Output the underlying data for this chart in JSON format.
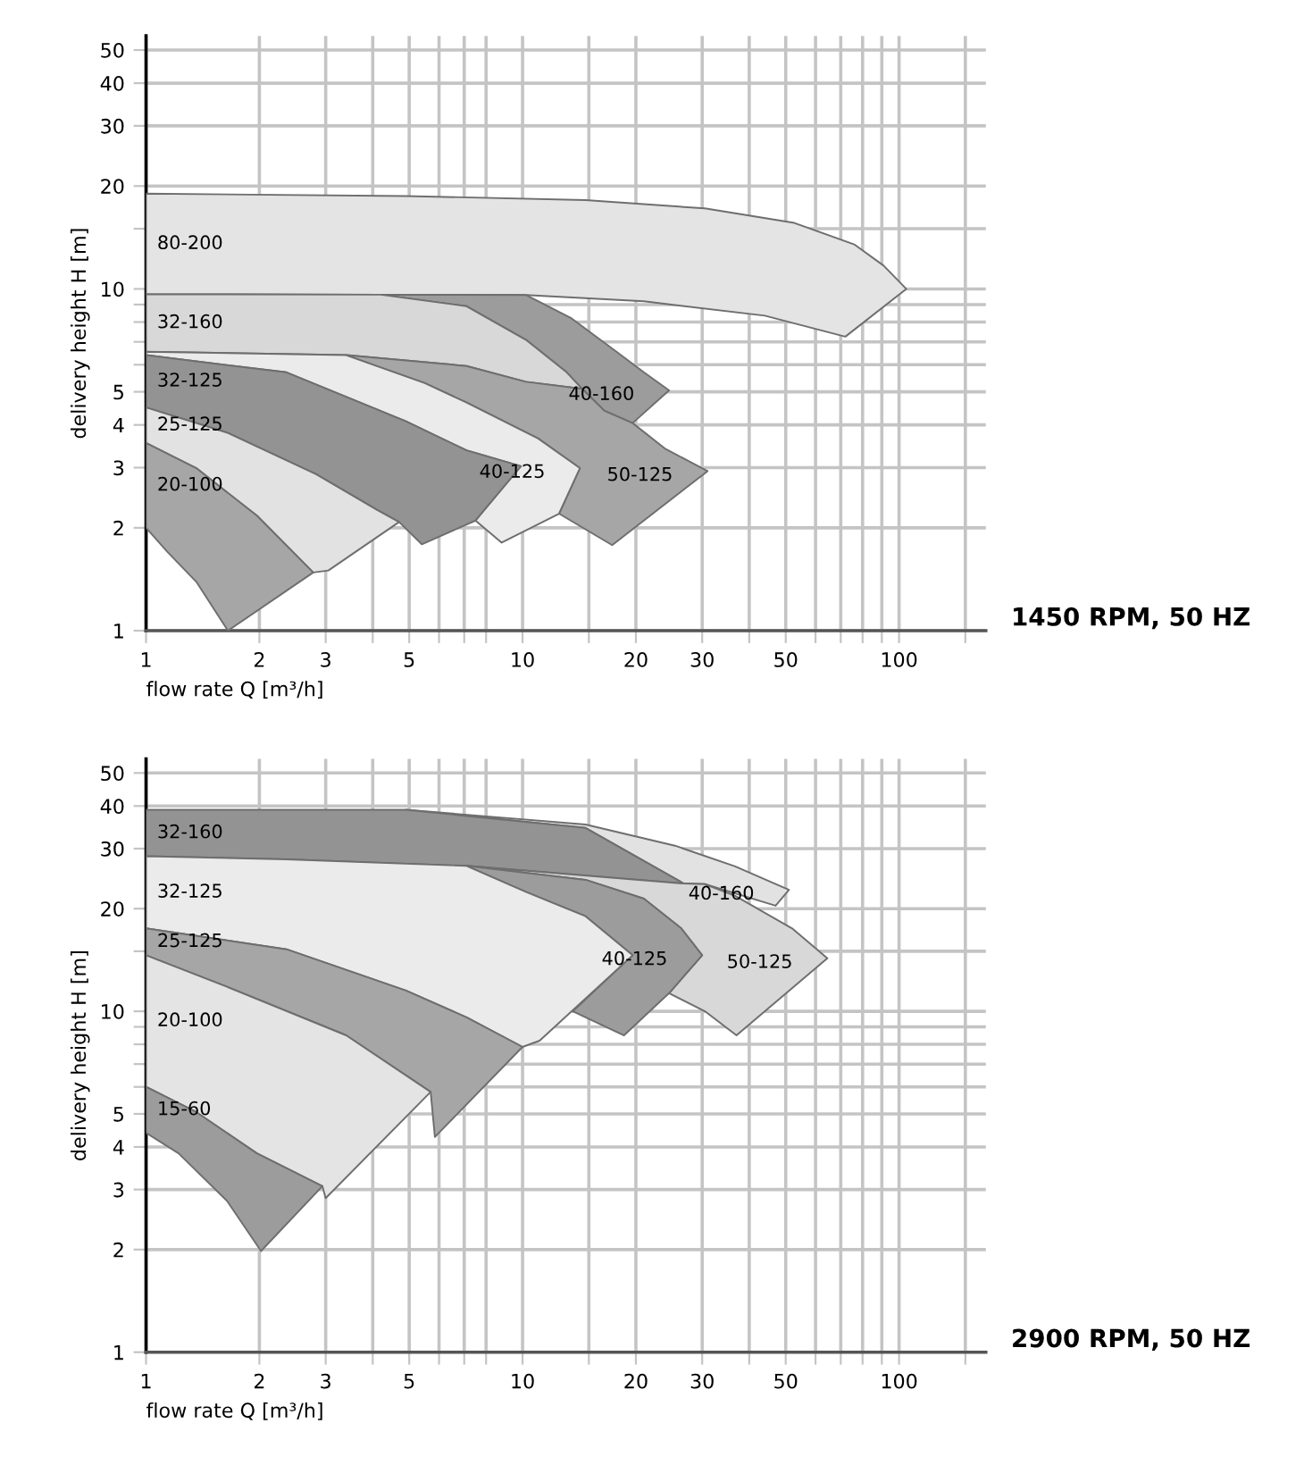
{
  "chart_data": [
    {
      "type": "area",
      "xlabel": "flow rate Q [m³/h]",
      "ylabel": "delivery height H [m]",
      "log": "xy",
      "grid": true,
      "xlim": [
        1,
        170
      ],
      "ylim": [
        1,
        55
      ],
      "xticks": [
        1,
        2,
        3,
        {
          "value": 4,
          "label": null
        },
        5,
        {
          "value": 6,
          "label": null
        },
        {
          "value": 7,
          "label": null
        },
        {
          "value": 8,
          "label": null
        },
        10,
        {
          "value": 15,
          "label": null
        },
        20,
        30,
        {
          "value": 40,
          "label": null
        },
        50,
        {
          "value": 60,
          "label": null
        },
        {
          "value": 70,
          "label": null
        },
        {
          "value": 80,
          "label": null
        },
        {
          "value": 90,
          "label": null
        },
        100,
        {
          "value": 150,
          "label": null
        }
      ],
      "yticks": [
        1,
        2,
        3,
        4,
        5,
        {
          "value": 6,
          "label": null
        },
        {
          "value": 7,
          "label": null
        },
        {
          "value": 8,
          "label": null
        },
        {
          "value": 9,
          "label": null
        },
        10,
        {
          "value": 15,
          "label": null
        },
        20,
        30,
        40,
        50
      ],
      "series": [
        {
          "name": "80-200",
          "color": "#e4e4e4",
          "x": [
            1,
            4.9,
            14.7,
            30.5,
            52.7,
            76,
            91,
            104.5,
            72,
            44,
            21,
            10.2,
            4.2,
            1
          ],
          "values": [
            19,
            18.7,
            18.2,
            17.2,
            15.6,
            13.5,
            11.7,
            10,
            7.25,
            8.35,
            9.2,
            9.6,
            9.62,
            9.65
          ]
        },
        {
          "name": "40-160",
          "color": "#9c9c9c",
          "x": [
            4.2,
            10.2,
            13.5,
            17.6,
            21,
            24.5,
            19.6,
            16.5,
            14.4,
            13.1,
            10.2,
            7.1
          ],
          "values": [
            9.62,
            9.6,
            8.2,
            6.6,
            5.7,
            5.05,
            4.05,
            4.4,
            5.1,
            5.7,
            7.1,
            8.9
          ]
        },
        {
          "name": "32-160",
          "color": "#d8d8d8",
          "x": [
            1,
            4.2,
            7.1,
            10.2,
            13.1,
            14.4,
            10.2,
            7.1,
            3.4,
            1
          ],
          "values": [
            9.65,
            9.62,
            8.9,
            7.1,
            5.7,
            5.1,
            5.35,
            5.95,
            6.4,
            6.55
          ]
        },
        {
          "name": "50-125",
          "color": "#a6a6a6",
          "x": [
            3.4,
            7.1,
            10.2,
            14.4,
            16.5,
            19.6,
            24,
            31,
            17.3,
            12.5,
            14.2,
            11,
            7.1,
            5.5
          ],
          "values": [
            6.4,
            5.95,
            5.35,
            5.1,
            4.4,
            4.05,
            3.4,
            2.93,
            1.78,
            2.2,
            2.99,
            3.65,
            4.65,
            5.3
          ]
        },
        {
          "name": "40-125",
          "color": "#ebebeb",
          "x": [
            1,
            3.4,
            5.5,
            7.1,
            11,
            14.2,
            12.5,
            8.8,
            7.5,
            9.9,
            7.1,
            4.9,
            2.36,
            1
          ],
          "values": [
            6.55,
            6.4,
            5.3,
            4.65,
            3.65,
            2.99,
            2.2,
            1.81,
            2.1,
            3.03,
            3.37,
            4.1,
            5.7,
            6.4
          ]
        },
        {
          "name": "32-125",
          "color": "#939393",
          "x": [
            1,
            2.36,
            4.9,
            7.1,
            9.9,
            7.5,
            5.4,
            4.7,
            4.1,
            2.83,
            1.64,
            1
          ],
          "values": [
            6.4,
            5.7,
            4.1,
            3.37,
            3.03,
            2.1,
            1.79,
            2.08,
            2.26,
            2.87,
            3.8,
            4.5
          ]
        },
        {
          "name": "25-125",
          "color": "#e2e2e2",
          "x": [
            1,
            1.64,
            2.83,
            4.1,
            4.7,
            3.05,
            2.78,
            1.97,
            1.36,
            1
          ],
          "values": [
            4.5,
            3.8,
            2.87,
            2.26,
            2.08,
            1.5,
            1.48,
            2.17,
            2.99,
            3.54
          ]
        },
        {
          "name": "20-100",
          "color": "#a6a6a6",
          "x": [
            1,
            1.36,
            1.97,
            2.78,
            1.65,
            1.36,
            1.14,
            1
          ],
          "values": [
            3.54,
            2.99,
            2.17,
            1.48,
            1.0,
            1.39,
            1.7,
            2.0
          ]
        }
      ],
      "annotations": [
        "1450 RPM, 50 HZ"
      ]
    },
    {
      "type": "area",
      "xlabel": "flow rate Q [m³/h]",
      "ylabel": "delivery height H [m]",
      "log": "xy",
      "grid": true,
      "xlim": [
        1,
        170
      ],
      "ylim": [
        1,
        55
      ],
      "xticks": [
        1,
        2,
        3,
        {
          "value": 4,
          "label": null
        },
        5,
        {
          "value": 6,
          "label": null
        },
        {
          "value": 7,
          "label": null
        },
        {
          "value": 8,
          "label": null
        },
        10,
        {
          "value": 15,
          "label": null
        },
        20,
        30,
        {
          "value": 40,
          "label": null
        },
        50,
        {
          "value": 60,
          "label": null
        },
        {
          "value": 70,
          "label": null
        },
        {
          "value": 80,
          "label": null
        },
        {
          "value": 90,
          "label": null
        },
        100,
        {
          "value": 150,
          "label": null
        }
      ],
      "yticks": [
        1,
        2,
        3,
        4,
        5,
        {
          "value": 6,
          "label": null
        },
        {
          "value": 7,
          "label": null
        },
        {
          "value": 8,
          "label": null
        },
        {
          "value": 9,
          "label": null
        },
        10,
        {
          "value": 15,
          "label": null
        },
        20,
        30,
        40,
        50
      ],
      "series": [
        {
          "name": "40-160",
          "color": "#e2e2e2",
          "x": [
            4.9,
            14.7,
            25.4,
            36.7,
            51,
            47,
            30.5,
            26.8,
            14.7
          ],
          "values": [
            39,
            35.3,
            30.6,
            26.6,
            22.7,
            20.4,
            23.6,
            23.7,
            34.5
          ]
        },
        {
          "name": "32-160",
          "color": "#939393",
          "x": [
            1,
            4.9,
            14.7,
            26.8,
            7.1,
            2.36,
            1
          ],
          "values": [
            39,
            39,
            34.5,
            23.7,
            26.7,
            27.9,
            28.5
          ]
        },
        {
          "name": "50-125",
          "color": "#d8d8d8",
          "x": [
            26.8,
            30.5,
            36.7,
            52,
            64.5,
            37,
            30.5,
            24.5,
            30,
            26.4,
            21,
            14.7,
            7.1
          ],
          "values": [
            23.7,
            23.6,
            21.8,
            17.5,
            14.3,
            8.5,
            10,
            11.3,
            14.6,
            17.5,
            21.4,
            24.3,
            26.7
          ]
        },
        {
          "name": "40-125",
          "color": "#9c9c9c",
          "x": [
            7.1,
            14.7,
            21,
            26.4,
            30,
            24.5,
            18.6,
            13.6,
            19.6,
            14.7,
            10.2
          ],
          "values": [
            26.7,
            24.3,
            21.4,
            17.5,
            14.6,
            11.3,
            8.5,
            10,
            14.6,
            19,
            22.4
          ]
        },
        {
          "name": "32-125",
          "color": "#ebebeb",
          "x": [
            1,
            2.36,
            7.1,
            10.2,
            14.7,
            19.6,
            11.1,
            10,
            7.1,
            4.9,
            2.36,
            1
          ],
          "values": [
            28.5,
            27.9,
            26.7,
            22.4,
            19,
            14.6,
            8.2,
            7.86,
            9.6,
            11.5,
            15.2,
            17.5
          ]
        },
        {
          "name": "25-125",
          "color": "#a6a6a6",
          "x": [
            1,
            2.36,
            4.9,
            7.1,
            10,
            5.85,
            5.7,
            3.4,
            1.64,
            1
          ],
          "values": [
            17.5,
            15.2,
            11.5,
            9.6,
            7.86,
            4.28,
            5.8,
            8.5,
            11.8,
            14.6
          ]
        },
        {
          "name": "20-100",
          "color": "#e4e4e4",
          "x": [
            1,
            1.64,
            3.4,
            5.7,
            3.0,
            2.94,
            1.97,
            1.36,
            1
          ],
          "values": [
            14.6,
            11.8,
            8.5,
            5.8,
            2.83,
            3.07,
            3.83,
            5.06,
            6.0
          ]
        },
        {
          "name": "15-60",
          "color": "#9c9c9c",
          "x": [
            1,
            1.36,
            1.97,
            2.94,
            2.02,
            1.64,
            1.22,
            1
          ],
          "values": [
            6.0,
            5.06,
            3.83,
            3.07,
            1.98,
            2.78,
            3.83,
            4.4
          ]
        }
      ],
      "annotations": [
        "2900 RPM, 50 HZ"
      ]
    }
  ]
}
